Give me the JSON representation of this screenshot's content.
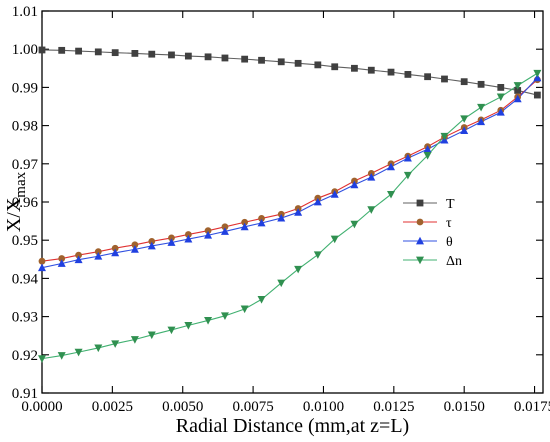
{
  "chart_data": {
    "type": "line",
    "title": "",
    "xlabel": "Radial Distance (mm,at z=L)",
    "ylabel": {
      "main": "X/X",
      "sub": "max"
    },
    "xlim": [
      0,
      0.0178
    ],
    "ylim": [
      0.91,
      1.01
    ],
    "xticks": [
      0.0,
      0.0025,
      0.005,
      0.0075,
      0.01,
      0.0125,
      0.015,
      0.0175
    ],
    "xtick_labels": [
      "0.0000",
      "0.0025",
      "0.0050",
      "0.0075",
      "0.0100",
      "0.0125",
      "0.0150",
      "0.0175"
    ],
    "yticks": [
      0.91,
      0.92,
      0.93,
      0.94,
      0.95,
      0.96,
      0.97,
      0.98,
      0.99,
      1.0,
      1.01
    ],
    "ytick_labels": [
      "0.91",
      "0.92",
      "0.93",
      "0.94",
      "0.95",
      "0.96",
      "0.97",
      "0.98",
      "0.99",
      "1.00",
      "1.01"
    ],
    "grid": false,
    "legend_position": "right",
    "x": [
      0.0,
      0.0007,
      0.0013,
      0.002,
      0.0026,
      0.0033,
      0.0039,
      0.0046,
      0.0052,
      0.0059,
      0.0065,
      0.0072,
      0.0078,
      0.0085,
      0.0091,
      0.0098,
      0.0104,
      0.0111,
      0.0117,
      0.0124,
      0.013,
      0.0137,
      0.0143,
      0.015,
      0.0156,
      0.0163,
      0.0169,
      0.0176
    ],
    "series": [
      {
        "name": "T",
        "marker": "square",
        "color": "#606060",
        "marker_color": "#404040",
        "values": [
          0.9998,
          0.9997,
          0.9995,
          0.9993,
          0.9991,
          0.9989,
          0.9987,
          0.9985,
          0.9982,
          0.998,
          0.9977,
          0.9974,
          0.9971,
          0.9967,
          0.9963,
          0.9959,
          0.9954,
          0.995,
          0.9945,
          0.994,
          0.9934,
          0.9928,
          0.9922,
          0.9915,
          0.9908,
          0.99,
          0.9892,
          0.988
        ]
      },
      {
        "name": "τ",
        "marker": "circle",
        "color": "#e03030",
        "marker_color": "#a0622d",
        "values": [
          0.9445,
          0.9452,
          0.9461,
          0.947,
          0.9479,
          0.9488,
          0.9497,
          0.9506,
          0.9515,
          0.9525,
          0.9535,
          0.9547,
          0.9557,
          0.9568,
          0.9583,
          0.961,
          0.9627,
          0.9655,
          0.9675,
          0.97,
          0.972,
          0.9745,
          0.977,
          0.9795,
          0.9815,
          0.984,
          0.9875,
          0.992
        ]
      },
      {
        "name": "θ",
        "marker": "triangle-up",
        "color": "#3050e0",
        "marker_color": "#2040e0",
        "values": [
          0.9428,
          0.9439,
          0.9449,
          0.9458,
          0.9467,
          0.9476,
          0.9485,
          0.9494,
          0.9503,
          0.9513,
          0.9523,
          0.9535,
          0.9545,
          0.9558,
          0.9573,
          0.96,
          0.962,
          0.9645,
          0.9665,
          0.9692,
          0.9715,
          0.9738,
          0.9762,
          0.9787,
          0.981,
          0.9835,
          0.987,
          0.9925
        ]
      },
      {
        "name": "Δn",
        "marker": "triangle-down",
        "color": "#40b070",
        "marker_color": "#309050",
        "values": [
          0.919,
          0.9198,
          0.9207,
          0.9218,
          0.9229,
          0.924,
          0.9252,
          0.9265,
          0.9277,
          0.929,
          0.9302,
          0.932,
          0.9345,
          0.9388,
          0.9424,
          0.9462,
          0.9503,
          0.9542,
          0.958,
          0.962,
          0.967,
          0.9722,
          0.9772,
          0.9818,
          0.9848,
          0.9875,
          0.9905,
          0.9937
        ]
      }
    ]
  }
}
